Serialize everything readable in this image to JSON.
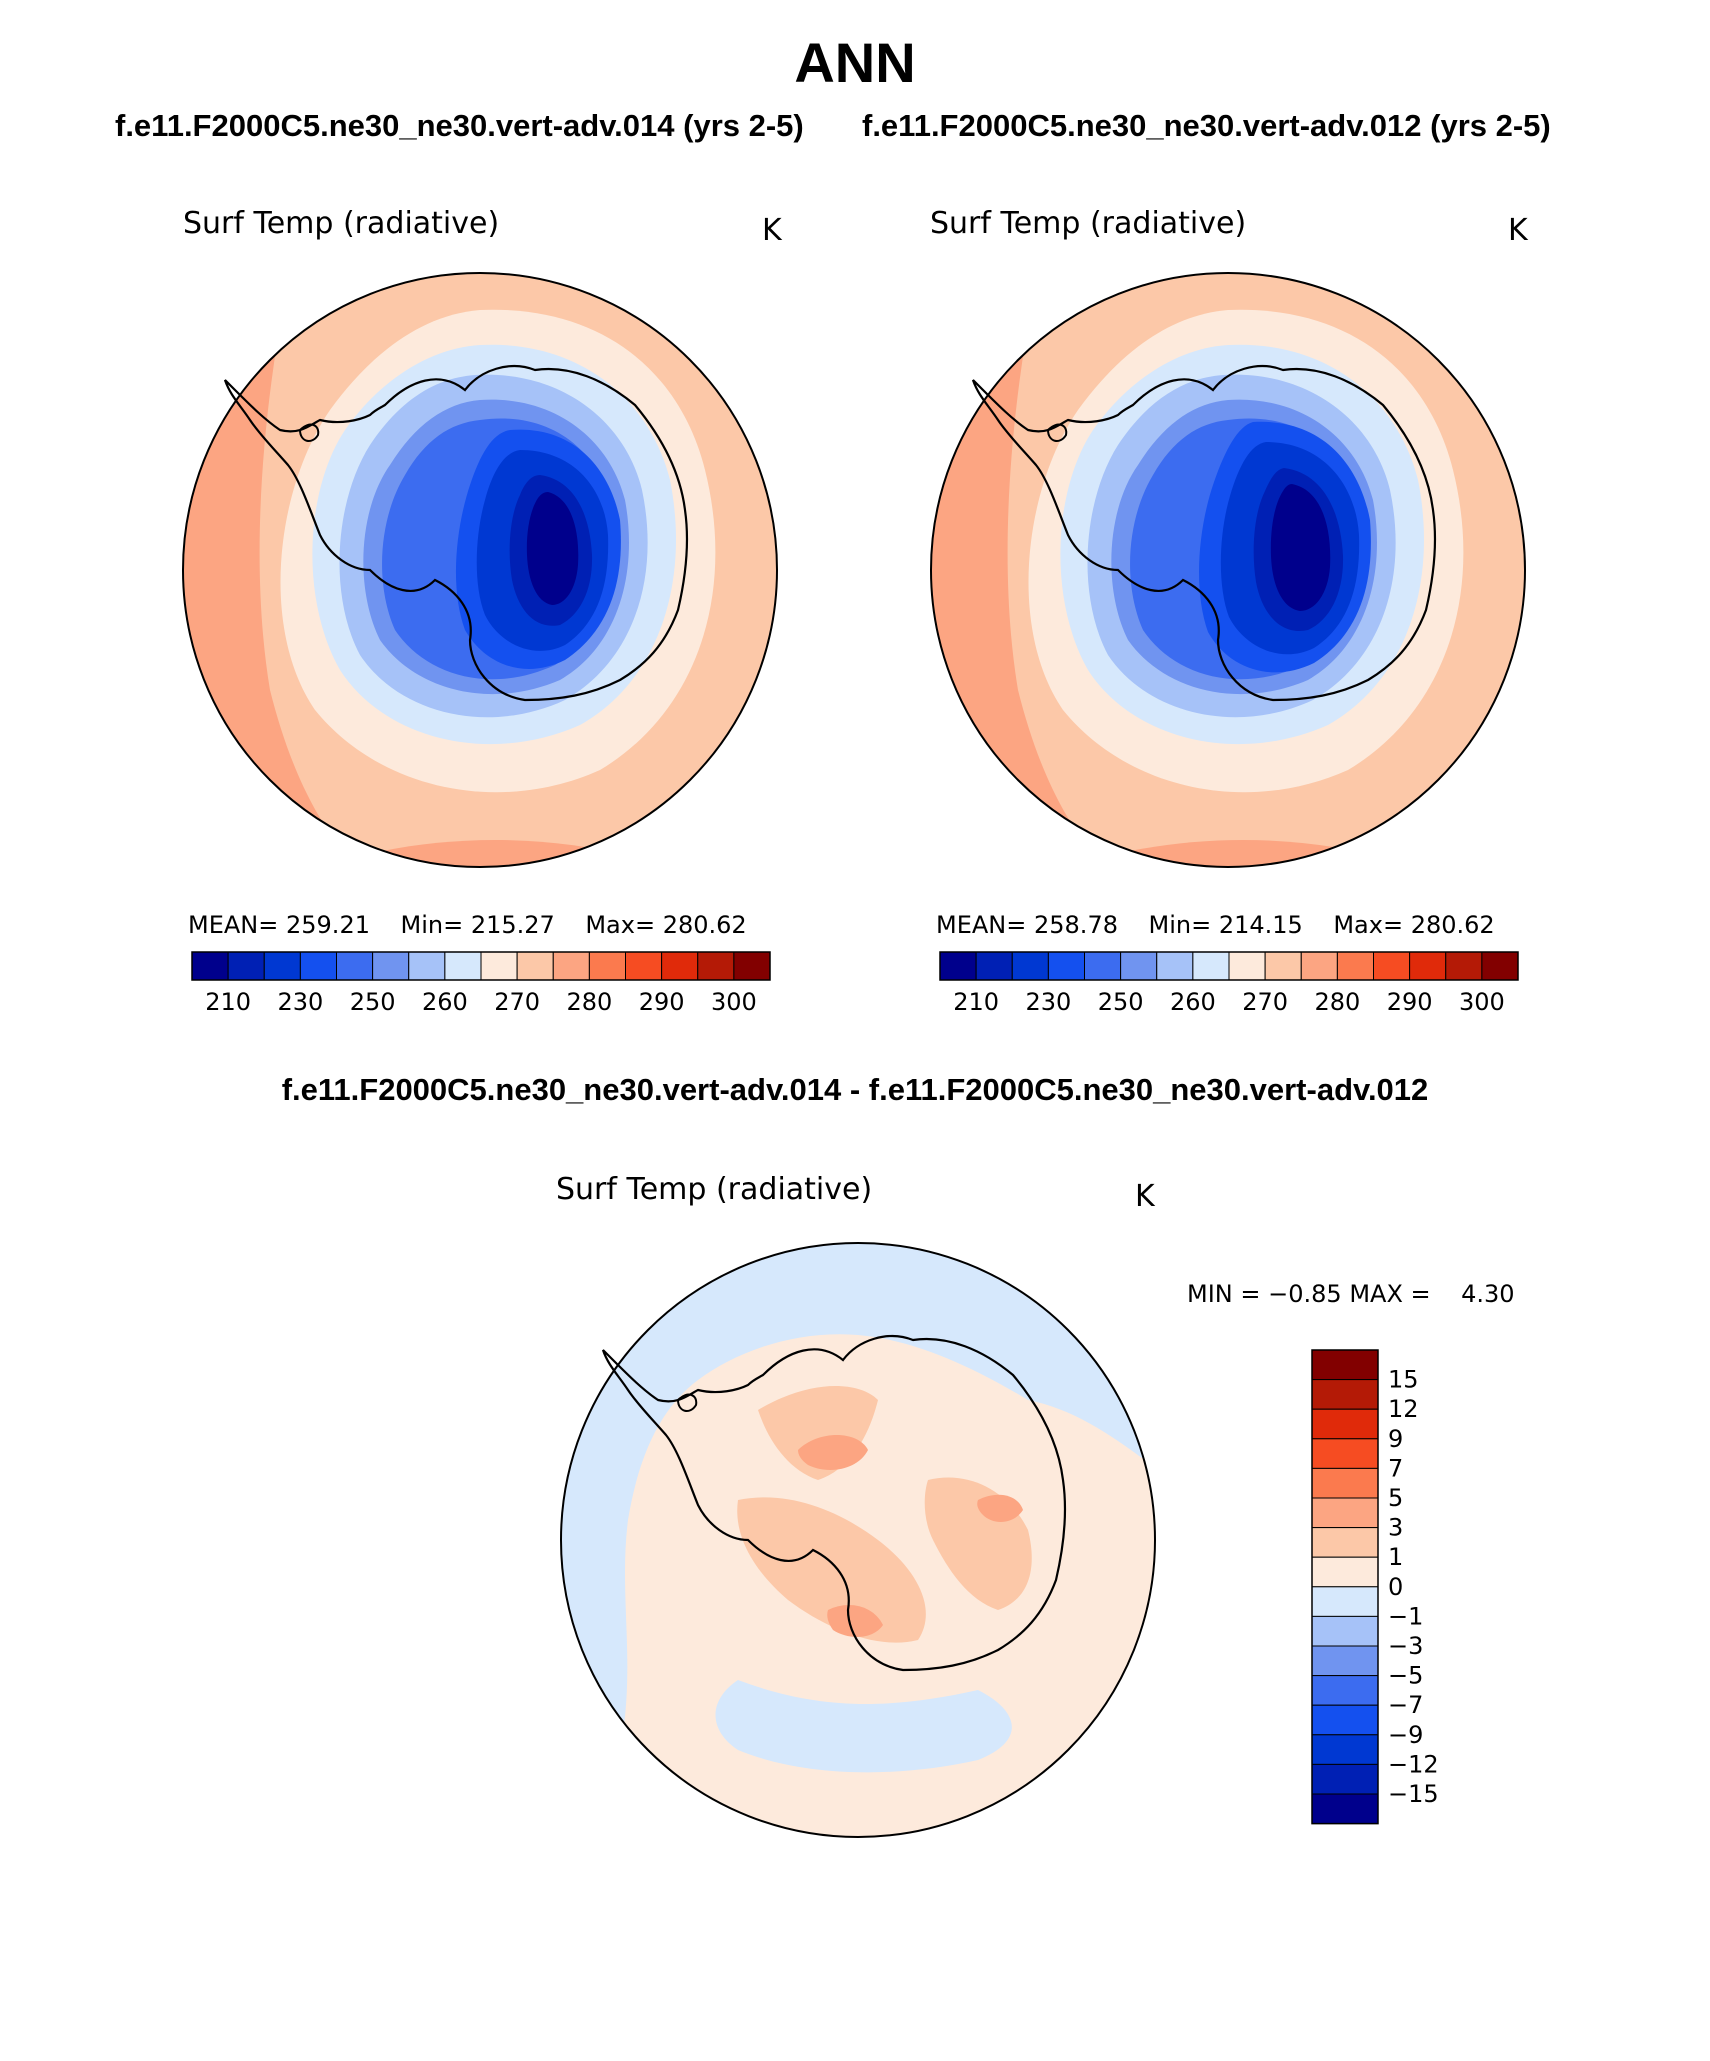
{
  "title": "ANN",
  "cases": [
    "f.e11.F2000C5.ne30_ne30.vert-adv.014 (yrs 2-5)",
    "f.e11.F2000C5.ne30_ne30.vert-adv.012 (yrs 2-5)"
  ],
  "panels": [
    {
      "variable": "Surf Temp (radiative)",
      "units": "K",
      "stats": {
        "mean_label": "MEAN=",
        "mean": "259.21",
        "min_label": "Min=",
        "min": "215.27",
        "max_label": "Max=",
        "max": "280.62"
      }
    },
    {
      "variable": "Surf Temp (radiative)",
      "units": "K",
      "stats": {
        "mean_label": "MEAN=",
        "mean": "258.78",
        "min_label": "Min=",
        "min": "214.15",
        "max_label": "Max=",
        "max": "280.62"
      }
    }
  ],
  "field_colorbar": {
    "colors": [
      "#00008c",
      "#0020b4",
      "#0038d2",
      "#1450ef",
      "#3c6cf0",
      "#7094f0",
      "#a6c2f8",
      "#d6e8fc",
      "#fdeadc",
      "#fcc8a8",
      "#fca582",
      "#fb7a4e",
      "#f64c22",
      "#e02a0a",
      "#b41a06",
      "#820000"
    ],
    "tick_labels": [
      "210",
      "230",
      "250",
      "260",
      "270",
      "280",
      "290",
      "300"
    ]
  },
  "difference": {
    "title": "f.e11.F2000C5.ne30_ne30.vert-adv.014 - f.e11.F2000C5.ne30_ne30.vert-adv.012",
    "variable": "Surf Temp (radiative)",
    "units": "K",
    "min_label": "MIN =",
    "min": "−0.85",
    "max_label": "MAX =",
    "max": "4.30",
    "colorbar": {
      "colors_top_to_bottom": [
        "#820000",
        "#b41a06",
        "#e02a0a",
        "#f64c22",
        "#fb7a4e",
        "#fca582",
        "#fcc8a8",
        "#fdeadc",
        "#d6e8fc",
        "#a6c2f8",
        "#7094f0",
        "#3c6cf0",
        "#1450ef",
        "#0038d2",
        "#0020b4",
        "#00008c"
      ],
      "labels_top_to_bottom": [
        "15",
        "12",
        "9",
        "7",
        "5",
        "3",
        "1",
        "0",
        "−1",
        "−3",
        "−5",
        "−7",
        "−9",
        "−12",
        "−15"
      ]
    }
  },
  "chart_data": [
    {
      "type": "heatmap",
      "title": "Surf Temp (radiative)",
      "subtitle": "f.e11.F2000C5.ne30_ne30.vert-adv.014 (yrs 2-5)",
      "units": "K",
      "projection": "south polar stereographic",
      "levels": [
        210,
        220,
        230,
        240,
        250,
        255,
        260,
        265,
        270,
        275,
        280,
        285,
        290,
        295,
        300
      ],
      "mean": 259.21,
      "min": 215.27,
      "max": 280.62
    },
    {
      "type": "heatmap",
      "title": "Surf Temp (radiative)",
      "subtitle": "f.e11.F2000C5.ne30_ne30.vert-adv.012 (yrs 2-5)",
      "units": "K",
      "projection": "south polar stereographic",
      "levels": [
        210,
        220,
        230,
        240,
        250,
        255,
        260,
        265,
        270,
        275,
        280,
        285,
        290,
        295,
        300
      ],
      "mean": 258.78,
      "min": 214.15,
      "max": 280.62
    },
    {
      "type": "heatmap",
      "title": "Surf Temp (radiative)",
      "subtitle": "f.e11.F2000C5.ne30_ne30.vert-adv.014 - f.e11.F2000C5.ne30_ne30.vert-adv.012",
      "units": "K",
      "projection": "south polar stereographic",
      "levels": [
        -15,
        -12,
        -9,
        -7,
        -5,
        -3,
        -1,
        0,
        1,
        3,
        5,
        7,
        9,
        12,
        15
      ],
      "min": -0.85,
      "max": 4.3
    }
  ]
}
